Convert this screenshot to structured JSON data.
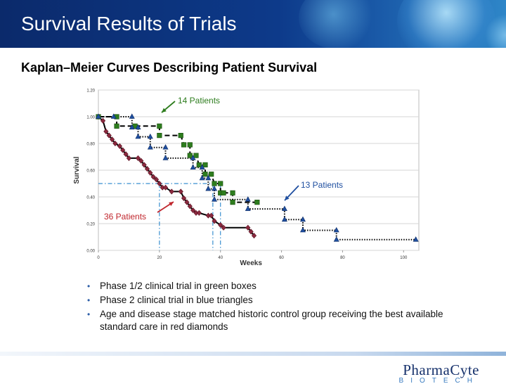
{
  "slide": {
    "title": "Survival Results of Trials",
    "subtitle": "Kaplan–Meier Curves Describing Patient Survival"
  },
  "bullets": [
    "Phase 1/2 clinical trial in green boxes",
    "Phase 2 clinical trial in blue triangles",
    "Age and disease stage matched historic control group receiving the best available standard care in red diamonds"
  ],
  "logo": {
    "main": "PharmaCyte",
    "sub": "BIOTECH"
  },
  "chart_data": {
    "type": "line",
    "xlabel": "Weeks",
    "ylabel": "Survival",
    "xlim": [
      0,
      105
    ],
    "ylim": [
      0,
      1.2
    ],
    "xticks": [
      0,
      20,
      40,
      60,
      80,
      100
    ],
    "yticks": [
      0,
      0.2,
      0.4,
      0.6,
      0.8,
      1.0,
      1.2
    ],
    "grid": true,
    "medians": {
      "level": 0.5,
      "x": [
        20,
        37.5,
        40
      ]
    },
    "series": [
      {
        "name": "36 Patients",
        "marker": "diamond",
        "color": "#8b2a3f",
        "line": "solid",
        "points": [
          [
            0,
            1.0
          ],
          [
            1.5,
            0.97
          ],
          [
            2.5,
            0.89
          ],
          [
            3.5,
            0.86
          ],
          [
            4.5,
            0.83
          ],
          [
            5.5,
            0.8
          ],
          [
            7,
            0.78
          ],
          [
            8,
            0.75
          ],
          [
            9,
            0.72
          ],
          [
            10,
            0.69
          ],
          [
            13,
            0.69
          ],
          [
            14,
            0.67
          ],
          [
            15,
            0.64
          ],
          [
            16,
            0.61
          ],
          [
            17,
            0.58
          ],
          [
            18,
            0.55
          ],
          [
            19,
            0.53
          ],
          [
            20,
            0.5
          ],
          [
            21,
            0.47
          ],
          [
            22,
            0.47
          ],
          [
            24,
            0.44
          ],
          [
            27,
            0.44
          ],
          [
            28,
            0.39
          ],
          [
            29,
            0.36
          ],
          [
            30,
            0.33
          ],
          [
            31,
            0.3
          ],
          [
            32,
            0.28
          ],
          [
            33,
            0.28
          ],
          [
            36,
            0.26
          ],
          [
            37,
            0.26
          ],
          [
            38,
            0.22
          ],
          [
            40,
            0.19
          ],
          [
            41,
            0.17
          ],
          [
            49,
            0.17
          ],
          [
            50,
            0.14
          ],
          [
            51,
            0.11
          ]
        ]
      },
      {
        "name": "14 Patients",
        "marker": "square",
        "color": "#2e7d1e",
        "line": "dashed",
        "points": [
          [
            0,
            1.0
          ],
          [
            6,
            1.0
          ],
          [
            6,
            0.93
          ],
          [
            12,
            0.93
          ],
          [
            20,
            0.93
          ],
          [
            20,
            0.86
          ],
          [
            27,
            0.86
          ],
          [
            28,
            0.79
          ],
          [
            30,
            0.79
          ],
          [
            30,
            0.71
          ],
          [
            32,
            0.71
          ],
          [
            33,
            0.64
          ],
          [
            35,
            0.64
          ],
          [
            35,
            0.57
          ],
          [
            37,
            0.57
          ],
          [
            38,
            0.5
          ],
          [
            40,
            0.5
          ],
          [
            40,
            0.43
          ],
          [
            41,
            0.43
          ],
          [
            44,
            0.43
          ],
          [
            44,
            0.36
          ],
          [
            52,
            0.36
          ]
        ]
      },
      {
        "name": "13 Patients",
        "marker": "triangle",
        "color": "#1f4fa0",
        "line": "dotted",
        "points": [
          [
            0,
            1.0
          ],
          [
            5,
            1.0
          ],
          [
            11,
            1.0
          ],
          [
            11,
            0.92
          ],
          [
            13,
            0.92
          ],
          [
            13,
            0.85
          ],
          [
            17,
            0.85
          ],
          [
            17,
            0.77
          ],
          [
            22,
            0.77
          ],
          [
            22,
            0.69
          ],
          [
            31,
            0.69
          ],
          [
            31,
            0.62
          ],
          [
            34,
            0.62
          ],
          [
            34,
            0.54
          ],
          [
            36,
            0.54
          ],
          [
            36,
            0.46
          ],
          [
            38,
            0.46
          ],
          [
            38,
            0.38
          ],
          [
            49,
            0.38
          ],
          [
            49,
            0.31
          ],
          [
            61,
            0.31
          ],
          [
            61,
            0.23
          ],
          [
            67,
            0.23
          ],
          [
            67,
            0.15
          ],
          [
            78,
            0.15
          ],
          [
            78,
            0.08
          ],
          [
            104,
            0.08
          ]
        ]
      }
    ],
    "annotations": [
      {
        "text": "14 Patients",
        "color": "#2e7d1e",
        "at": [
          21,
          1.0
        ]
      },
      {
        "text": "13 Patients",
        "color": "#1f4fa0",
        "at": [
          62,
          0.37
        ]
      },
      {
        "text": "36 Patients",
        "color": "#c0262d",
        "at": [
          25,
          0.36
        ]
      }
    ]
  }
}
